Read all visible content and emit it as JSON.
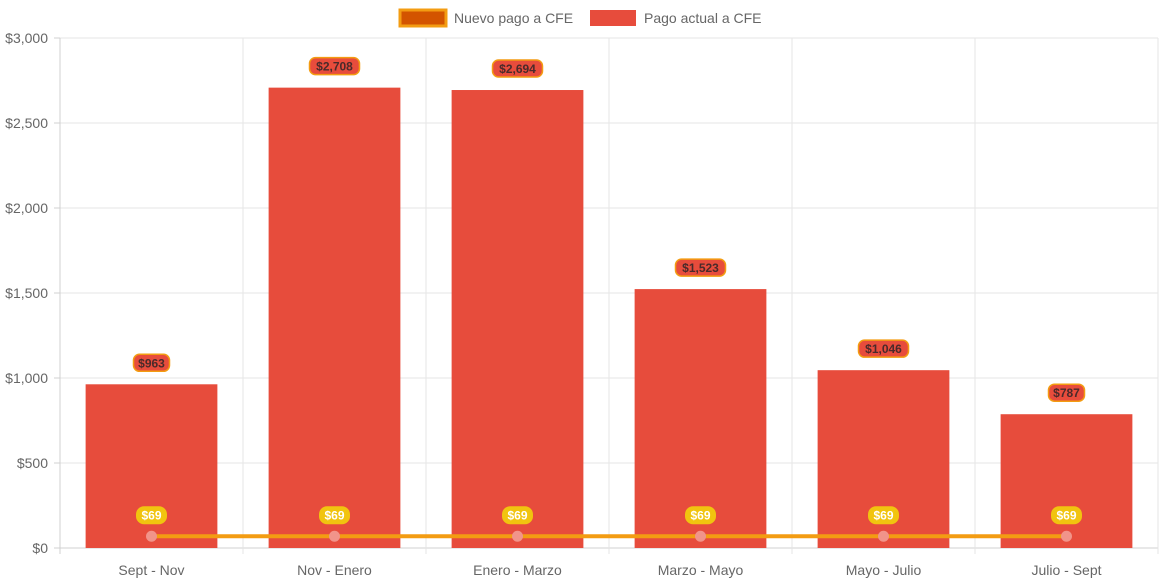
{
  "chart_data": {
    "type": "bar",
    "categories": [
      "Sept - Nov",
      "Nov - Enero",
      "Enero - Marzo",
      "Marzo - Mayo",
      "Mayo - Julio",
      "Julio - Sept"
    ],
    "ylim": [
      0,
      3000
    ],
    "yticks": [
      0,
      500,
      1000,
      1500,
      2000,
      2500,
      3000
    ],
    "ytick_labels": [
      "$0",
      "$500",
      "$1,000",
      "$1,500",
      "$2,000",
      "$2,500",
      "$3,000"
    ],
    "grid": true,
    "legend_position": "top",
    "series": [
      {
        "name": "Pago actual a CFE",
        "type": "bar",
        "values": [
          963,
          2708,
          2694,
          1523,
          1046,
          787
        ],
        "labels": [
          "$963",
          "$2,708",
          "$2,694",
          "$1,523",
          "$1,046",
          "$787"
        ],
        "color": "#e74c3c"
      },
      {
        "name": "Nuevo pago a CFE",
        "type": "line",
        "values": [
          69,
          69,
          69,
          69,
          69,
          69
        ],
        "labels": [
          "$69",
          "$69",
          "$69",
          "$69",
          "$69",
          "$69"
        ],
        "color": "#f39c12",
        "point_color": "#f1948a"
      }
    ],
    "colors": {
      "bar_label_bg": "#e74c3c",
      "bar_label_border": "#f39c12",
      "bar_label_text": "#4a2a2a",
      "line_label_bg": "#f1c40f",
      "line_label_text": "#ffffff",
      "legend_line_swatch_fill": "#d35400",
      "grid": "#e5e5e5",
      "axis": "#d0d0d0",
      "tick_text": "#666666"
    }
  }
}
